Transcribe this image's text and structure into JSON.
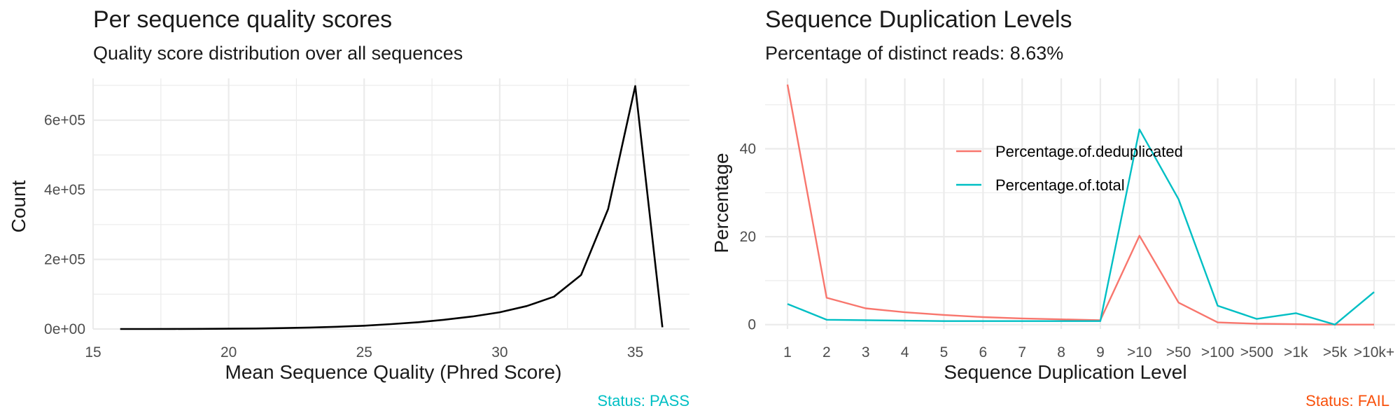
{
  "colors": {
    "grid": "#ebebeb",
    "axis_text": "#4d4d4d",
    "text": "#1a1a1a",
    "pass": "#00bfc4",
    "fail": "#f8510c",
    "series_black": "#000000",
    "series_red": "#f8766d",
    "series_teal": "#00bfc4"
  },
  "chart_data": [
    {
      "type": "line",
      "title": "Per sequence quality scores",
      "subtitle": "Quality score distribution over all sequences",
      "xlabel": "Mean Sequence Quality (Phred Score)",
      "ylabel": "Count",
      "status": "Status: PASS",
      "xlim": [
        15,
        37
      ],
      "ylim": [
        0,
        720000
      ],
      "x_ticks": [
        15,
        20,
        25,
        30,
        35
      ],
      "x_tick_labels": [
        "15",
        "20",
        "25",
        "30",
        "35"
      ],
      "y_ticks": [
        0,
        200000,
        400000,
        600000
      ],
      "y_tick_labels": [
        "0e+00",
        "2e+05",
        "4e+05",
        "6e+05"
      ],
      "grid": true,
      "x": [
        16,
        17,
        18,
        19,
        20,
        21,
        22,
        23,
        24,
        25,
        26,
        27,
        28,
        29,
        30,
        31,
        32,
        33,
        34,
        35,
        36
      ],
      "y": [
        0,
        100,
        200,
        400,
        800,
        1500,
        2600,
        4200,
        6500,
        9500,
        14000,
        19500,
        27000,
        36000,
        48000,
        66000,
        93000,
        155000,
        345000,
        698000,
        5000
      ]
    },
    {
      "type": "line",
      "title": "Sequence Duplication Levels",
      "subtitle": "Percentage of distinct reads: 8.63%",
      "xlabel": "Sequence Duplication Level",
      "ylabel": "Percentage",
      "status": "Status: FAIL",
      "categories": [
        "1",
        "2",
        "3",
        "4",
        "5",
        "6",
        "7",
        "8",
        "9",
        ">10",
        ">50",
        ">100",
        ">500",
        ">1k",
        ">5k",
        ">10k+"
      ],
      "ylim": [
        -1,
        56
      ],
      "y_ticks": [
        0,
        20,
        40
      ],
      "y_tick_labels": [
        "0",
        "20",
        "40"
      ],
      "grid": true,
      "legend_position": "top-center",
      "series": [
        {
          "name": "Percentage.of.deduplicated",
          "values": [
            54.6,
            6.1,
            3.7,
            2.8,
            2.2,
            1.7,
            1.4,
            1.2,
            1.0,
            20.2,
            5.0,
            0.5,
            0.2,
            0.1,
            0.0,
            0.0
          ]
        },
        {
          "name": "Percentage.of.total",
          "values": [
            4.7,
            1.1,
            1.0,
            0.9,
            0.8,
            0.8,
            0.8,
            0.8,
            0.8,
            44.4,
            28.5,
            4.3,
            1.3,
            2.6,
            0.0,
            7.4
          ]
        }
      ]
    }
  ]
}
